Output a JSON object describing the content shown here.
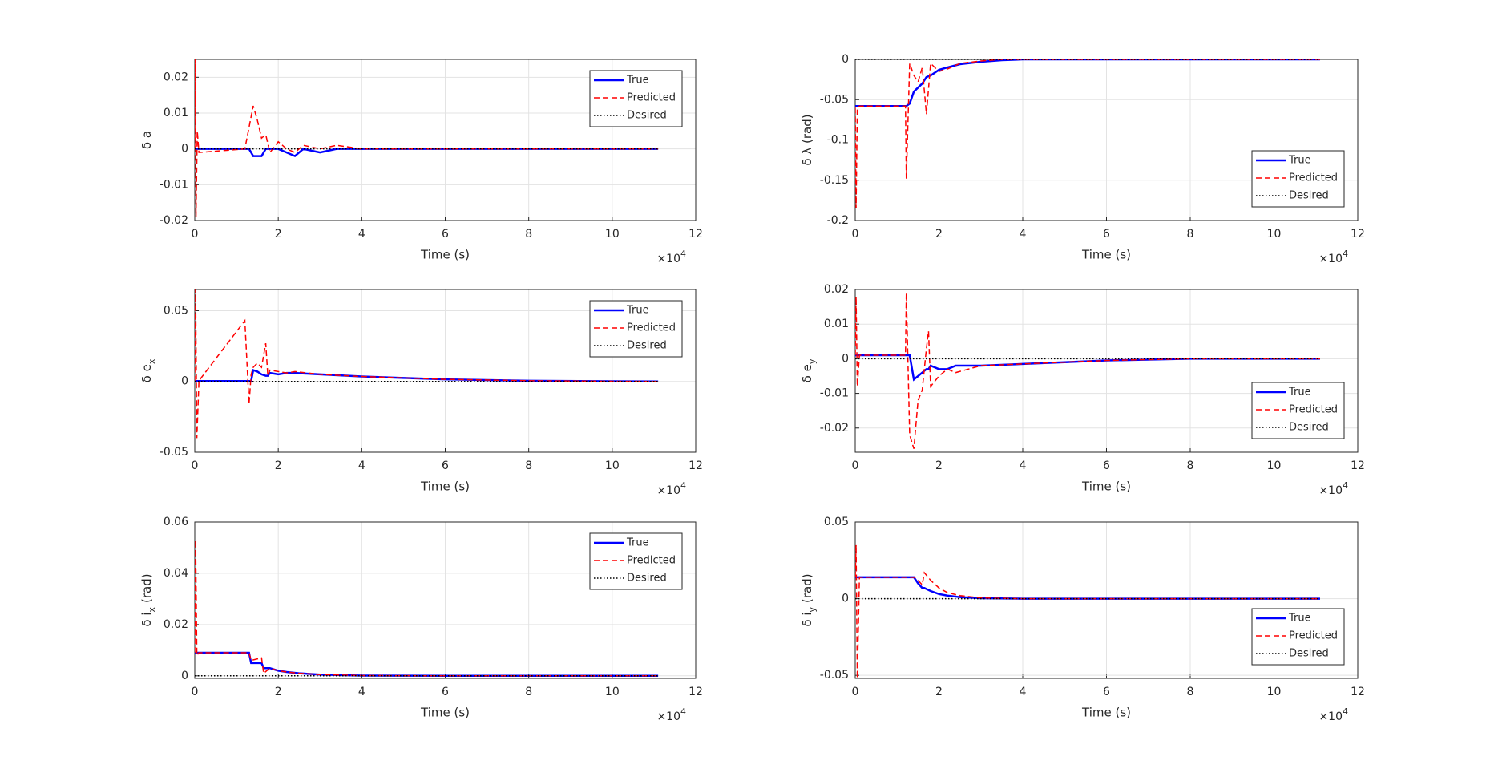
{
  "chart_data": [
    {
      "type": "line",
      "ylabel": "δ a",
      "xlabel": "Time (s)",
      "x_multiplier": "×10",
      "x_exponent": "4",
      "xlim": [
        0,
        12
      ],
      "xticks": [
        0,
        2,
        4,
        6,
        8,
        10,
        12
      ],
      "ylim": [
        -0.02,
        0.025
      ],
      "yticks": [
        -0.02,
        -0.01,
        0,
        0.01,
        0.02
      ],
      "grid": true,
      "legend": "northeast",
      "x": [
        0,
        0.01,
        0.03,
        0.06,
        0.1,
        1.2,
        1.3,
        1.4,
        1.5,
        1.6,
        1.7,
        1.8,
        2.0,
        2.2,
        2.4,
        2.6,
        3,
        3.4,
        4,
        5,
        6,
        8,
        10,
        11.1
      ],
      "series": [
        {
          "name": "True",
          "color": "#0000ff",
          "linestyle": "solid",
          "values": [
            0,
            0,
            0,
            0,
            0,
            0,
            0,
            -0.002,
            -0.002,
            -0.002,
            0,
            0,
            0,
            -0.001,
            -0.002,
            0,
            -0.001,
            0,
            0,
            0,
            0,
            0,
            0,
            0
          ]
        },
        {
          "name": "Predicted",
          "color": "#ff0000",
          "linestyle": "dashed",
          "values": [
            0,
            0.025,
            -0.019,
            0.005,
            -0.001,
            0,
            0.006,
            0.012,
            0.008,
            0.003,
            0.004,
            -0.001,
            0.002,
            0,
            -0.001,
            0.001,
            0,
            0.001,
            0,
            0,
            0,
            0,
            0,
            0
          ]
        },
        {
          "name": "Desired",
          "color": "#000000",
          "linestyle": "dotted",
          "values": [
            0,
            0,
            0,
            0,
            0,
            0,
            0,
            0,
            0,
            0,
            0,
            0,
            0,
            0,
            0,
            0,
            0,
            0,
            0,
            0,
            0,
            0,
            0,
            0
          ]
        }
      ]
    },
    {
      "type": "line",
      "ylabel": "δ λ (rad)",
      "xlabel": "Time (s)",
      "x_multiplier": "×10",
      "x_exponent": "4",
      "xlim": [
        0,
        12
      ],
      "xticks": [
        0,
        2,
        4,
        6,
        8,
        10,
        12
      ],
      "ylim": [
        -0.2,
        0
      ],
      "yticks": [
        -0.2,
        -0.15,
        -0.1,
        -0.05,
        0
      ],
      "grid": true,
      "legend": "southeast",
      "x": [
        0,
        0.02,
        0.05,
        0.1,
        1.0,
        1.2,
        1.22,
        1.3,
        1.4,
        1.5,
        1.6,
        1.7,
        1.8,
        2.0,
        2.2,
        2.5,
        3,
        3.5,
        4,
        6,
        8,
        10,
        11.1
      ],
      "series": [
        {
          "name": "True",
          "color": "#0000ff",
          "linestyle": "solid",
          "values": [
            -0.058,
            -0.058,
            -0.058,
            -0.058,
            -0.058,
            -0.058,
            -0.058,
            -0.055,
            -0.04,
            -0.035,
            -0.03,
            -0.022,
            -0.02,
            -0.013,
            -0.01,
            -0.006,
            -0.003,
            -0.001,
            0,
            0,
            0,
            0,
            0
          ]
        },
        {
          "name": "Predicted",
          "color": "#ff0000",
          "linestyle": "dashed",
          "values": [
            -0.06,
            -0.185,
            -0.06,
            -0.058,
            -0.058,
            -0.058,
            -0.148,
            -0.005,
            -0.02,
            -0.028,
            -0.01,
            -0.068,
            -0.005,
            -0.015,
            -0.012,
            -0.005,
            -0.002,
            0,
            0,
            0,
            0,
            0,
            0
          ]
        },
        {
          "name": "Desired",
          "color": "#000000",
          "linestyle": "dotted",
          "values": [
            0,
            0,
            0,
            0,
            0,
            0,
            0,
            0,
            0,
            0,
            0,
            0,
            0,
            0,
            0,
            0,
            0,
            0,
            0,
            0,
            0,
            0,
            0
          ]
        }
      ]
    },
    {
      "type": "line",
      "ylabel": "δ e",
      "ylabel_subscript": "x",
      "xlabel": "Time (s)",
      "x_multiplier": "×10",
      "x_exponent": "4",
      "xlim": [
        0,
        12
      ],
      "xticks": [
        0,
        2,
        4,
        6,
        8,
        10,
        12
      ],
      "ylim": [
        -0.05,
        0.065
      ],
      "yticks": [
        -0.05,
        0,
        0.05
      ],
      "grid": true,
      "legend": "northeast",
      "x": [
        0,
        0.02,
        0.05,
        0.1,
        1.2,
        1.3,
        1.35,
        1.4,
        1.5,
        1.6,
        1.7,
        1.75,
        1.8,
        2.0,
        2.2,
        2.4,
        3,
        4,
        5,
        6,
        8,
        10,
        11.1
      ],
      "series": [
        {
          "name": "True",
          "color": "#0000ff",
          "linestyle": "solid",
          "values": [
            0.0003,
            0.0003,
            0.0003,
            0.0003,
            0.0003,
            0.0003,
            0.0003,
            0.008,
            0.007,
            0.005,
            0.004,
            0.004,
            0.006,
            0.005,
            0.006,
            0.006,
            0.005,
            0.0035,
            0.0025,
            0.0015,
            0.0005,
            0.0001,
            0
          ]
        },
        {
          "name": "Predicted",
          "color": "#ff0000",
          "linestyle": "dashed",
          "values": [
            0,
            0.065,
            -0.04,
            0.0005,
            0.043,
            -0.016,
            0.005,
            0.01,
            0.013,
            0.01,
            0.027,
            0.004,
            0.008,
            0.007,
            0.006,
            0.007,
            0.005,
            0.0035,
            0.0025,
            0.0015,
            0.0005,
            0.0001,
            0
          ]
        },
        {
          "name": "Desired",
          "color": "#000000",
          "linestyle": "dotted",
          "values": [
            0,
            0,
            0,
            0,
            0,
            0,
            0,
            0,
            0,
            0,
            0,
            0,
            0,
            0,
            0,
            0,
            0,
            0,
            0,
            0,
            0,
            0,
            0
          ]
        }
      ]
    },
    {
      "type": "line",
      "ylabel": "δ e",
      "ylabel_subscript": "y",
      "xlabel": "Time (s)",
      "x_multiplier": "×10",
      "x_exponent": "4",
      "xlim": [
        0,
        12
      ],
      "xticks": [
        0,
        2,
        4,
        6,
        8,
        10,
        12
      ],
      "ylim": [
        -0.027,
        0.02
      ],
      "yticks": [
        -0.02,
        -0.01,
        0,
        0.01,
        0.02
      ],
      "grid": true,
      "legend": "southeast",
      "x": [
        0,
        0.02,
        0.05,
        0.1,
        1.2,
        1.22,
        1.3,
        1.4,
        1.5,
        1.6,
        1.7,
        1.75,
        1.8,
        2.0,
        2.2,
        2.4,
        3,
        4,
        5,
        6,
        8,
        10,
        11.1
      ],
      "series": [
        {
          "name": "True",
          "color": "#0000ff",
          "linestyle": "solid",
          "values": [
            0.001,
            0.001,
            0.001,
            0.001,
            0.001,
            0.001,
            0.001,
            -0.006,
            -0.005,
            -0.004,
            -0.003,
            -0.003,
            -0.002,
            -0.003,
            -0.003,
            -0.002,
            -0.002,
            -0.0015,
            -0.001,
            -0.0005,
            0,
            0,
            0
          ]
        },
        {
          "name": "Predicted",
          "color": "#ff0000",
          "linestyle": "dashed",
          "values": [
            0.001,
            0.018,
            -0.008,
            0.001,
            0.001,
            0.019,
            -0.022,
            -0.026,
            -0.012,
            -0.009,
            0.003,
            0.008,
            -0.008,
            -0.005,
            -0.003,
            -0.004,
            -0.002,
            -0.0015,
            -0.001,
            -0.0005,
            0,
            0,
            0
          ]
        },
        {
          "name": "Desired",
          "color": "#000000",
          "linestyle": "dotted",
          "values": [
            0,
            0,
            0,
            0,
            0,
            0,
            0,
            0,
            0,
            0,
            0,
            0,
            0,
            0,
            0,
            0,
            0,
            0,
            0,
            0,
            0,
            0,
            0
          ]
        }
      ]
    },
    {
      "type": "line",
      "ylabel": "δ i",
      "ylabel_subscript": "x",
      "ylabel_unit": "(rad)",
      "xlabel": "Time (s)",
      "x_multiplier": "×10",
      "x_exponent": "4",
      "xlim": [
        0,
        12
      ],
      "xticks": [
        0,
        2,
        4,
        6,
        8,
        10,
        12
      ],
      "ylim": [
        -0.001,
        0.06
      ],
      "yticks": [
        0,
        0.02,
        0.04,
        0.06
      ],
      "grid": true,
      "legend": "northeast",
      "x": [
        0,
        0.02,
        0.05,
        0.1,
        1.3,
        1.35,
        1.6,
        1.65,
        1.8,
        2.0,
        2.2,
        2.5,
        3,
        4,
        6,
        8,
        10,
        11.1
      ],
      "series": [
        {
          "name": "True",
          "color": "#0000ff",
          "linestyle": "solid",
          "values": [
            0.009,
            0.009,
            0.009,
            0.009,
            0.009,
            0.005,
            0.005,
            0.003,
            0.003,
            0.002,
            0.0015,
            0.001,
            0.0005,
            0.0001,
            0,
            0,
            0,
            0
          ]
        },
        {
          "name": "Predicted",
          "color": "#ff0000",
          "linestyle": "dashed",
          "values": [
            0.009,
            0.053,
            0.008,
            0.009,
            0.009,
            0.006,
            0.007,
            0.001,
            0.003,
            0.002,
            0.0015,
            0.001,
            0.0005,
            0.0001,
            0,
            0,
            0,
            0
          ]
        },
        {
          "name": "Desired",
          "color": "#000000",
          "linestyle": "dotted",
          "values": [
            0,
            0,
            0,
            0,
            0,
            0,
            0,
            0,
            0,
            0,
            0,
            0,
            0,
            0,
            0,
            0,
            0,
            0
          ]
        }
      ]
    },
    {
      "type": "line",
      "ylabel": "δ i",
      "ylabel_subscript": "y",
      "ylabel_unit": "(rad)",
      "xlabel": "Time (s)",
      "x_multiplier": "×10",
      "x_exponent": "4",
      "xlim": [
        0,
        12
      ],
      "xticks": [
        0,
        2,
        4,
        6,
        8,
        10,
        12
      ],
      "ylim": [
        -0.052,
        0.05
      ],
      "yticks": [
        -0.05,
        0,
        0.05
      ],
      "grid": true,
      "legend": "southeast",
      "x": [
        0,
        0.02,
        0.05,
        0.1,
        1.4,
        1.5,
        1.6,
        1.65,
        1.8,
        2.0,
        2.2,
        2.5,
        3,
        4,
        6,
        8,
        10,
        11.1
      ],
      "series": [
        {
          "name": "True",
          "color": "#0000ff",
          "linestyle": "solid",
          "values": [
            0.014,
            0.014,
            0.014,
            0.014,
            0.014,
            0.01,
            0.007,
            0.007,
            0.005,
            0.003,
            0.002,
            0.001,
            0.0003,
            0,
            0,
            0,
            0,
            0
          ]
        },
        {
          "name": "Predicted",
          "color": "#ff0000",
          "linestyle": "dashed",
          "values": [
            0.014,
            0.035,
            -0.052,
            0.014,
            0.014,
            0.012,
            0.009,
            0.017,
            0.012,
            0.007,
            0.004,
            0.002,
            0.0005,
            0,
            0,
            0,
            0,
            0
          ]
        },
        {
          "name": "Desired",
          "color": "#000000",
          "linestyle": "dotted",
          "values": [
            0,
            0,
            0,
            0,
            0,
            0,
            0,
            0,
            0,
            0,
            0,
            0,
            0,
            0,
            0,
            0,
            0,
            0
          ]
        }
      ]
    }
  ]
}
